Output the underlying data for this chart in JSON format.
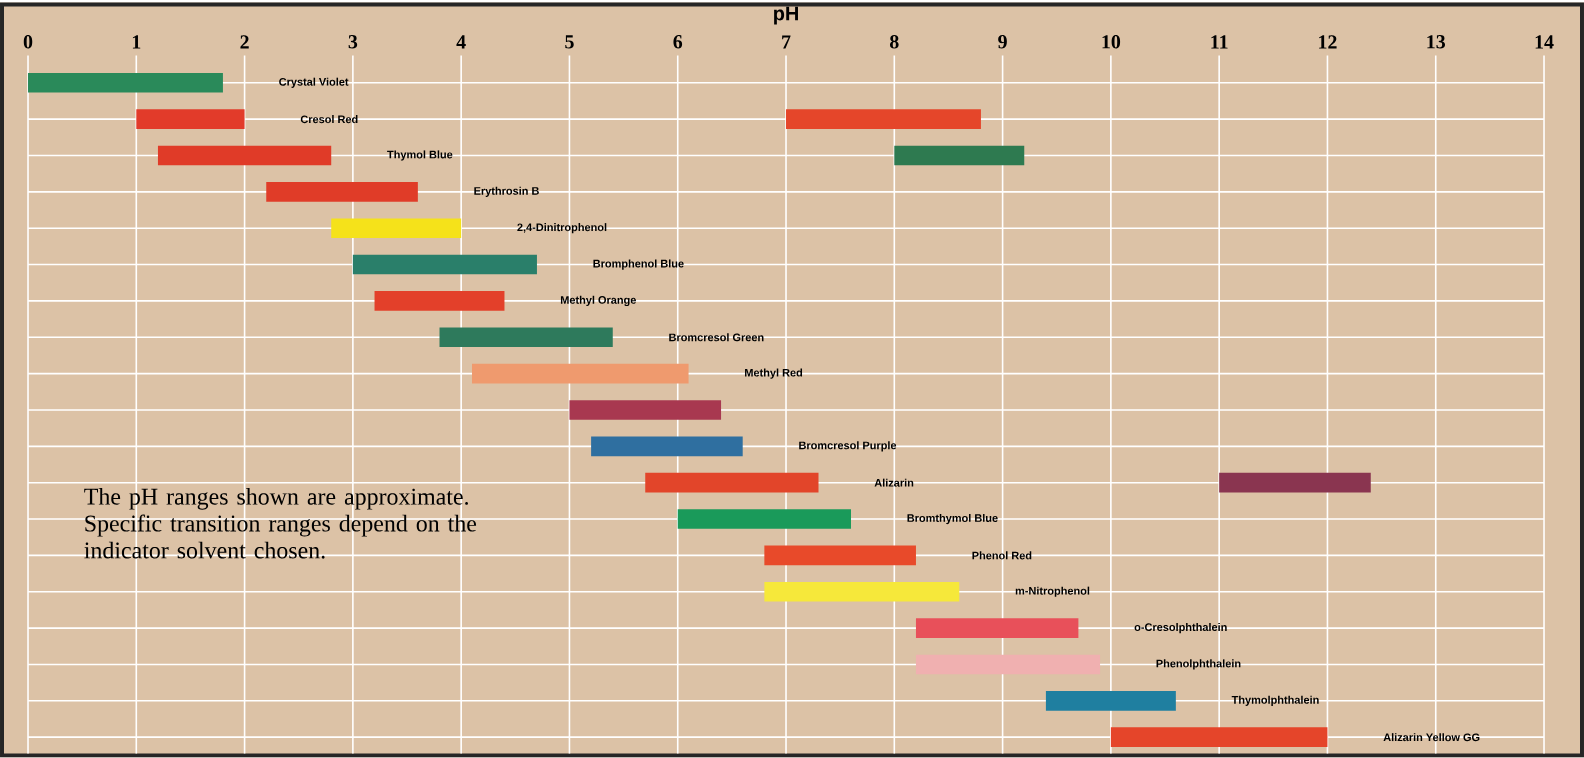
{
  "chart_data": {
    "type": "bar",
    "orientation": "horizontal",
    "xlabel": "pH",
    "categories": [
      "Crystal Violet",
      "Cresol Red",
      "Thymol Blue",
      "Erythrosin B",
      "2,4-Dinitrophenol",
      "Bromphenol Blue",
      "Methyl Orange",
      "Bromcresol Green",
      "Methyl Red",
      null,
      "Bromcresol Purple",
      "Alizarin",
      "Bromthymol Blue",
      "Phenol Red",
      "m-Nitrophenol",
      "o-Cresolphthalein",
      "Phenolphthalein",
      "Thymolphthalein",
      "Alizarin Yellow GG"
    ],
    "series": [
      {
        "base": [
          0,
          1.0,
          1.2,
          2.2,
          2.8,
          3.0,
          3.2,
          3.8,
          4.1,
          5.0,
          5.2,
          5.7,
          6.0,
          6.8,
          6.8,
          8.2,
          8.2,
          9.4,
          10.0
        ],
        "values": [
          1.8,
          1.0,
          1.6,
          1.4,
          1.2,
          1.7,
          1.2,
          1.6,
          2.0,
          1.4,
          1.4,
          1.6,
          1.6,
          1.4,
          1.8,
          1.5,
          1.7,
          1.2,
          2.0
        ],
        "colors": [
          "#2a8a5a",
          "#e23b2a",
          "#e03b28",
          "#e03c28",
          "#f5e21a",
          "#2a7f6a",
          "#e3402a",
          "#2e7a5c",
          "#ef9a6e",
          "#a83850",
          "#2f6fa0",
          "#e2452a",
          "#1a9a5a",
          "#e84a2a",
          "#f6e83a",
          "#e8505a",
          "#f0b0b0",
          "#1f7fa0",
          "#e5452a"
        ]
      },
      {
        "base": [
          null,
          7.0,
          8.0,
          null,
          null,
          null,
          null,
          null,
          null,
          null,
          null,
          11.0,
          null,
          null,
          null,
          null,
          null,
          null,
          null
        ],
        "values": [
          null,
          1.8,
          1.2,
          null,
          null,
          null,
          null,
          null,
          null,
          null,
          null,
          1.4,
          null,
          null,
          null,
          null,
          null,
          null,
          null
        ],
        "colors": [
          null,
          "#e5462a",
          "#2e7a50",
          null,
          null,
          null,
          null,
          null,
          null,
          null,
          null,
          "#8a3550",
          null,
          null,
          null,
          null,
          null,
          null,
          null
        ]
      }
    ],
    "xlim": [
      0,
      14
    ],
    "xticks": [
      0,
      1,
      2,
      3,
      4,
      5,
      6,
      7,
      8,
      9,
      10,
      11,
      12,
      13,
      14
    ],
    "grid": true,
    "tick_labels": "x",
    "annotations": [
      "The pH ranges shown are approximate. Specific transition ranges depend on the indicator solvent chosen."
    ]
  }
}
